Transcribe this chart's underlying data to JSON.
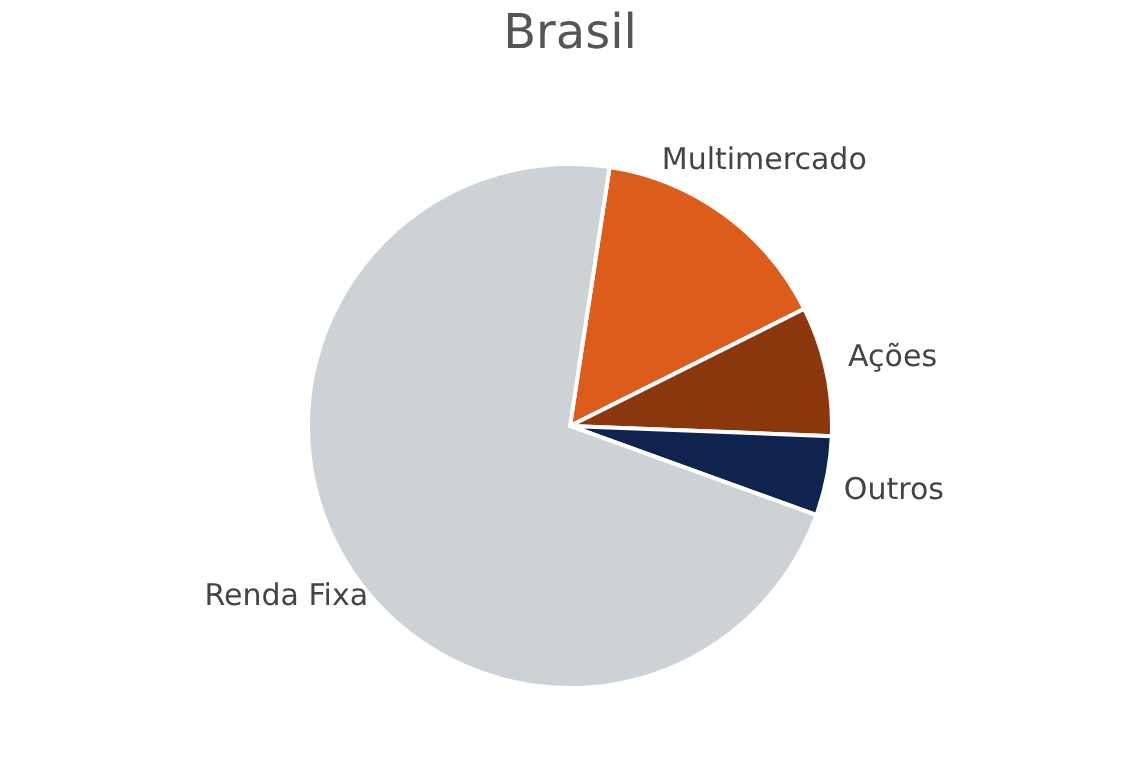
{
  "chart_data": {
    "type": "pie",
    "title": "Brasil",
    "categories": [
      "Multimercado",
      "Ações",
      "Outros",
      "Renda Fixa"
    ],
    "values": [
      15.2,
      8.0,
      4.9,
      71.9
    ],
    "colors": [
      "#dc5c1c",
      "#8b360c",
      "#10234f",
      "#cdd2d6"
    ],
    "legend": false
  }
}
